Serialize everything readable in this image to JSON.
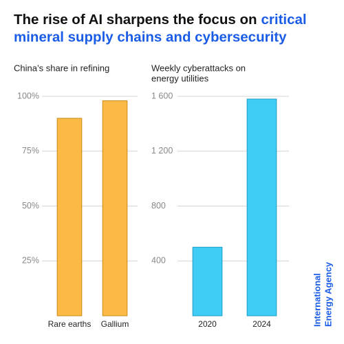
{
  "title": {
    "lead": "The rise of AI sharpens the focus on",
    "highlight": [
      "critical",
      "mineral supply chains and cybersecurity"
    ]
  },
  "source": [
    "International",
    "Energy Agency"
  ],
  "chart_data": [
    {
      "type": "bar",
      "title": [
        "China’s share in refining"
      ],
      "categories": [
        "Rare earths",
        "Gallium"
      ],
      "values": [
        90,
        98
      ],
      "color": "#fbb945",
      "stroke": "#c98a1c",
      "ylim": [
        0,
        100
      ],
      "yticks": [
        {
          "value": 25,
          "label": "25%"
        },
        {
          "value": 50,
          "label": "50%"
        },
        {
          "value": 75,
          "label": "75%"
        },
        {
          "value": 100,
          "label": "100%"
        }
      ],
      "grid": true
    },
    {
      "type": "bar",
      "title": [
        "Weekly cyberattacks on",
        "energy utilities"
      ],
      "categories": [
        "2020",
        "2024"
      ],
      "values": [
        500,
        1580
      ],
      "color": "#3fcdf5",
      "stroke": "#1a9cc4",
      "ylim": [
        0,
        1600
      ],
      "yticks": [
        400,
        800,
        {
          "value": 1200,
          "label": "1 200"
        },
        {
          "value": 1600,
          "label": "1 600"
        }
      ],
      "grid": true
    }
  ]
}
